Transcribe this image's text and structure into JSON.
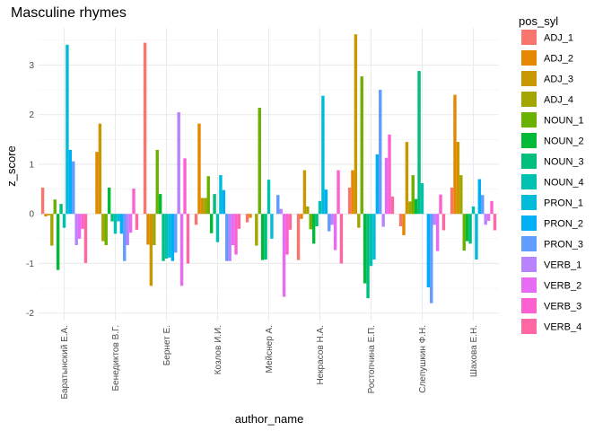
{
  "chart_data": {
    "type": "bar",
    "title": "Masculine rhymes",
    "xlabel": "author_name",
    "ylabel": "z_score",
    "ylim": [
      -2.15,
      3.75
    ],
    "yticks": [
      -2,
      -1,
      0,
      1,
      2,
      3
    ],
    "grid": true,
    "legend_title": "pos_syl",
    "legend_position": "right",
    "categories": [
      "Баратынский Е.А.",
      "Бенедиктов В.Г.",
      "Бернет Е.",
      "Козлов И.И.",
      "Мейснер А.",
      "Некрасов Н.А.",
      "Ростопчина Е.П.",
      "Слепушкин Ф.Н.",
      "Шахова Е.Н."
    ],
    "series": [
      {
        "name": "ADJ_1",
        "color": "#F8766D",
        "values": [
          0.53,
          0.0,
          3.45,
          -0.22,
          -0.17,
          -0.93,
          0.53,
          -0.25,
          0.53
        ]
      },
      {
        "name": "ADJ_2",
        "color": "#E58700",
        "values": [
          -0.05,
          1.25,
          -0.62,
          1.82,
          -0.08,
          -0.1,
          0.88,
          -0.43,
          2.4
        ]
      },
      {
        "name": "ADJ_3",
        "color": "#C99800",
        "values": [
          -0.03,
          1.82,
          -1.45,
          0.32,
          0.0,
          0.88,
          3.62,
          1.45,
          1.45
        ]
      },
      {
        "name": "ADJ_4",
        "color": "#A3A500",
        "values": [
          -0.64,
          -0.55,
          -0.63,
          0.32,
          -0.64,
          0.15,
          -0.28,
          0.25,
          0.78
        ]
      },
      {
        "name": "NOUN_1",
        "color": "#6BB100",
        "values": [
          0.29,
          -0.63,
          1.29,
          0.76,
          2.14,
          -0.31,
          2.77,
          0.78,
          -0.74
        ]
      },
      {
        "name": "NOUN_2",
        "color": "#00BA38",
        "values": [
          -1.13,
          0.53,
          0.4,
          -0.39,
          -0.93,
          -0.6,
          -1.4,
          0.3,
          -0.55
        ]
      },
      {
        "name": "NOUN_3",
        "color": "#00BF7D",
        "values": [
          0.2,
          -0.15,
          -0.95,
          0.4,
          -0.92,
          -0.25,
          -1.7,
          2.88,
          -0.6
        ]
      },
      {
        "name": "NOUN_4",
        "color": "#00C0AF",
        "values": [
          -0.28,
          -0.4,
          -0.9,
          -0.57,
          0.69,
          0.26,
          -1.05,
          0.62,
          0.15
        ]
      },
      {
        "name": "PRON_1",
        "color": "#00BCD8",
        "values": [
          3.41,
          -0.15,
          -0.88,
          0.78,
          -0.5,
          2.38,
          -0.92,
          0.0,
          -0.92
        ]
      },
      {
        "name": "PRON_2",
        "color": "#00B0F6",
        "values": [
          1.29,
          -0.4,
          -0.95,
          0.48,
          0.0,
          0.49,
          1.2,
          -1.48,
          0.7
        ]
      },
      {
        "name": "PRON_3",
        "color": "#619CFF",
        "values": [
          1.06,
          -0.95,
          -0.78,
          -0.95,
          0.38,
          -0.35,
          2.5,
          -1.8,
          0.38
        ]
      },
      {
        "name": "VERB_1",
        "color": "#B983FF",
        "values": [
          -0.63,
          -0.63,
          2.05,
          -0.95,
          0.1,
          -0.22,
          -0.26,
          -0.22,
          -0.22
        ]
      },
      {
        "name": "VERB_2",
        "color": "#E76BF3",
        "values": [
          -0.5,
          -0.38,
          -1.45,
          -0.63,
          -1.67,
          -0.73,
          1.13,
          -0.75,
          -0.14
        ]
      },
      {
        "name": "VERB_3",
        "color": "#FD61D1",
        "values": [
          -0.3,
          0.51,
          1.12,
          -0.82,
          -0.82,
          0.88,
          1.6,
          0.39,
          0.26
        ]
      },
      {
        "name": "VERB_4",
        "color": "#FF67A4",
        "values": [
          -0.99,
          -0.32,
          -1.0,
          -0.3,
          -0.32,
          -1.0,
          0.35,
          -0.33,
          -0.33
        ]
      }
    ]
  }
}
